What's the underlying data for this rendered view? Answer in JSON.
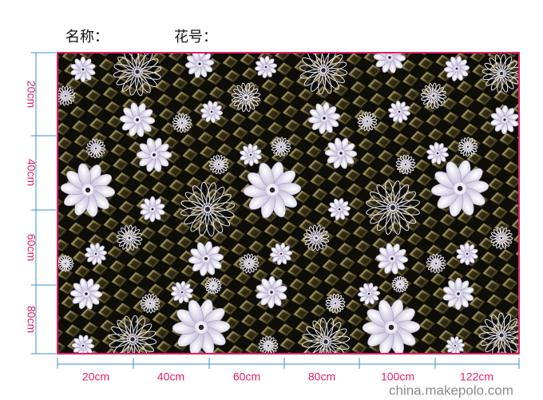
{
  "header": {
    "name_label": "名称：",
    "pattern_label": "花号："
  },
  "left_labels": [
    "20cm",
    "40cm",
    "60cm",
    "80cm"
  ],
  "bottom_labels": [
    "20cm",
    "40cm",
    "60cm",
    "80cm",
    "100cm",
    "122cm"
  ],
  "watermark": "china.makepolo.com"
}
